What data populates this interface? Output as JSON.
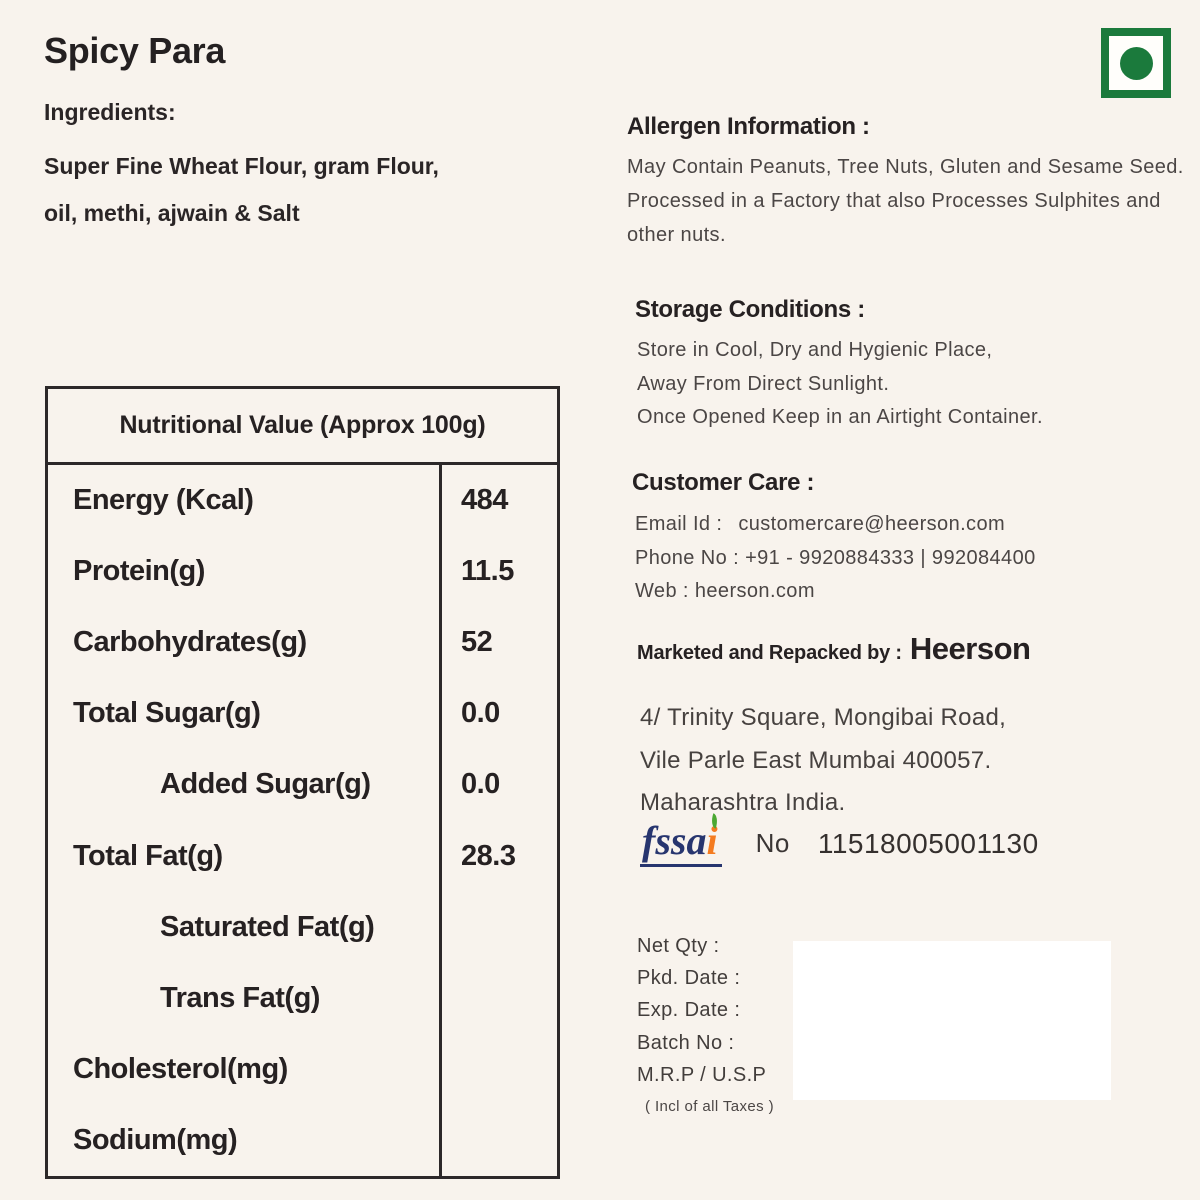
{
  "page": {
    "background_color": "#f8f3ed",
    "text_color": "#272223"
  },
  "header": {
    "product_name": "Spicy Para",
    "ingredients_label": "Ingredients:",
    "ingredients_lines": [
      "Super Fine Wheat Flour, gram Flour,",
      "oil, methi, ajwain & Salt"
    ],
    "veg_symbol": {
      "meaning": "vegetarian-mark",
      "color": "#1b7a3c"
    }
  },
  "nutrition_table": {
    "header": "Nutritional Value (Approx 100g)",
    "rows": [
      {
        "label": "Energy (Kcal)",
        "value": "484",
        "indent": false
      },
      {
        "label": "Protein(g)",
        "value": "11.5",
        "indent": false
      },
      {
        "label": "Carbohydrates(g)",
        "value": "52",
        "indent": false
      },
      {
        "label": "Total Sugar(g)",
        "value": "0.0",
        "indent": false
      },
      {
        "label": "Added Sugar(g)",
        "value": "0.0",
        "indent": true
      },
      {
        "label": "Total Fat(g)",
        "value": "28.3",
        "indent": false
      },
      {
        "label": "Saturated Fat(g)",
        "value": "",
        "indent": true
      },
      {
        "label": "Trans Fat(g)",
        "value": "",
        "indent": true
      },
      {
        "label": "Cholesterol(mg)",
        "value": "",
        "indent": false
      },
      {
        "label": "Sodium(mg)",
        "value": "",
        "indent": false
      }
    ]
  },
  "allergen": {
    "heading": "Allergen Information :",
    "lines": [
      "May Contain Peanuts, Tree Nuts, Gluten and Sesame Seed.",
      "Processed in a Factory that also Processes Sulphites and",
      "other nuts."
    ]
  },
  "storage": {
    "heading": "Storage Conditions :",
    "lines": [
      "Store in Cool, Dry and Hygienic Place,",
      "Away From Direct Sunlight.",
      "Once Opened Keep in an Airtight Container."
    ]
  },
  "customer_care": {
    "heading": "Customer Care :",
    "email_label": "Email Id :",
    "email_value": "customercare@heerson.com",
    "phone_label": "Phone No :",
    "phone_value": "+91 - 9920884333  |  992084400",
    "web_label": "Web :",
    "web_value": "heerson.com"
  },
  "marketer": {
    "label": "Marketed and Repacked by :",
    "brand": "Heerson",
    "address_lines": [
      "4/ Trinity Square, Mongibai Road,",
      "Vile Parle East Mumbai 400057.",
      "Maharashtra India."
    ]
  },
  "fssai": {
    "logo_text_main": "fssa",
    "logo_text_i": "i",
    "no_label": "No",
    "license_no": "11518005001130",
    "navy": "#27356f",
    "orange": "#f47b20",
    "leaf_green": "#4ba832"
  },
  "pack_details": {
    "labels": [
      "Net Qty :",
      "Pkd. Date :",
      "Exp. Date :",
      "Batch No :",
      "M.R.P / U.S.P"
    ],
    "tax_note": "( Incl of all Taxes )"
  }
}
